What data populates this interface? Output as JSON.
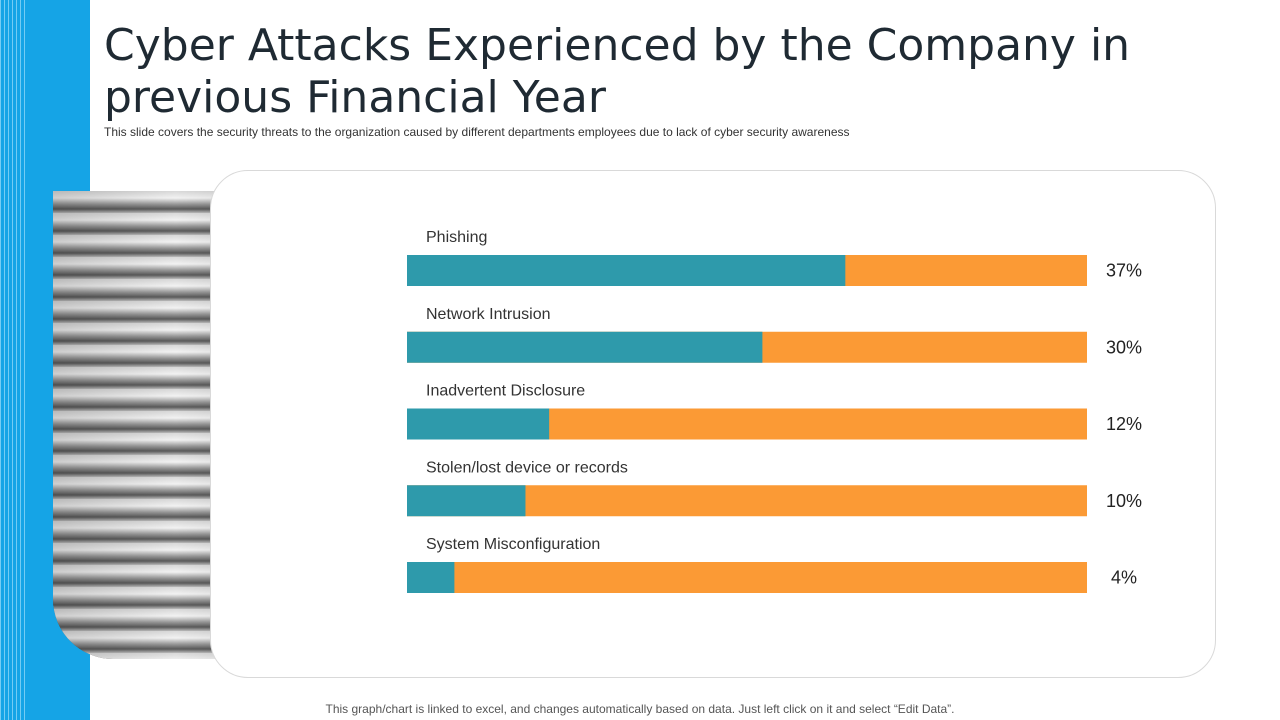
{
  "slide": {
    "title": "Cyber Attacks Experienced by the Company in previous Financial Year",
    "subtitle": "This slide covers the security threats to the organization caused by different departments employees due to lack of cyber security awareness",
    "footer": "This graph/chart is linked to excel, and changes automatically based on data. Just left click on it and select “Edit Data”."
  },
  "colors": {
    "accent_stripe": "#15a4e6",
    "bar_value": "#2e9aab",
    "bar_remainder": "#fb9a35"
  },
  "chart_data": {
    "type": "bar",
    "orientation": "horizontal",
    "stacked": true,
    "categories": [
      "Phishing",
      "Network Intrusion",
      "Inadvertent Disclosure",
      "Stolen/lost device or records",
      "System Misconfiguration"
    ],
    "values": [
      37,
      30,
      12,
      10,
      4
    ],
    "labels": [
      "37%",
      "30%",
      "12%",
      "10%",
      "4%"
    ],
    "xlim": [
      0,
      57.4
    ],
    "grid": false
  }
}
